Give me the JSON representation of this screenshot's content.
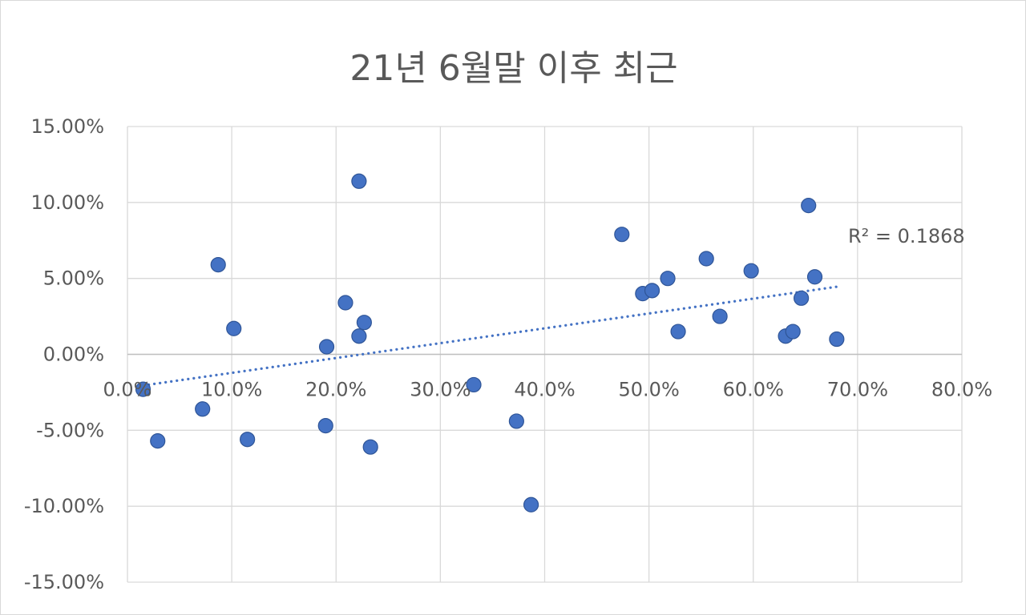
{
  "chart_data": {
    "type": "scatter",
    "title": "21년 6월말 이후 최근",
    "xlabel": "",
    "ylabel": "",
    "xlim": [
      0,
      0.8
    ],
    "ylim": [
      -0.15,
      0.15
    ],
    "x_ticks": [
      0,
      0.1,
      0.2,
      0.3,
      0.4,
      0.5,
      0.6,
      0.7,
      0.8
    ],
    "x_tick_labels": [
      "0.0%",
      "10.0%",
      "20.0%",
      "30.0%",
      "40.0%",
      "50.0%",
      "60.0%",
      "70.0%",
      "80.0%"
    ],
    "y_ticks": [
      0.15,
      0.1,
      0.05,
      0,
      -0.05,
      -0.1,
      -0.15
    ],
    "y_tick_labels": [
      "15.00%",
      "10.00%",
      "5.00%",
      "0.00%",
      "-5.00%",
      "-10.00%",
      "-15.00%"
    ],
    "grid": true,
    "legend": "none",
    "marker_color": "#4472c4",
    "marker_edge_color": "#2f5597",
    "series": [
      {
        "points": [
          {
            "x": 0.015,
            "y": -0.023
          },
          {
            "x": 0.029,
            "y": -0.057
          },
          {
            "x": 0.072,
            "y": -0.036
          },
          {
            "x": 0.087,
            "y": 0.059
          },
          {
            "x": 0.102,
            "y": 0.017
          },
          {
            "x": 0.115,
            "y": -0.056
          },
          {
            "x": 0.19,
            "y": -0.047
          },
          {
            "x": 0.191,
            "y": 0.005
          },
          {
            "x": 0.209,
            "y": 0.034
          },
          {
            "x": 0.222,
            "y": 0.012
          },
          {
            "x": 0.222,
            "y": 0.114
          },
          {
            "x": 0.227,
            "y": 0.021
          },
          {
            "x": 0.233,
            "y": -0.061
          },
          {
            "x": 0.332,
            "y": -0.02
          },
          {
            "x": 0.373,
            "y": -0.044
          },
          {
            "x": 0.387,
            "y": -0.099
          },
          {
            "x": 0.474,
            "y": 0.079
          },
          {
            "x": 0.494,
            "y": 0.04
          },
          {
            "x": 0.503,
            "y": 0.042
          },
          {
            "x": 0.518,
            "y": 0.05
          },
          {
            "x": 0.528,
            "y": 0.015
          },
          {
            "x": 0.555,
            "y": 0.063
          },
          {
            "x": 0.568,
            "y": 0.025
          },
          {
            "x": 0.598,
            "y": 0.055
          },
          {
            "x": 0.631,
            "y": 0.012
          },
          {
            "x": 0.638,
            "y": 0.015
          },
          {
            "x": 0.646,
            "y": 0.037
          },
          {
            "x": 0.653,
            "y": 0.098
          },
          {
            "x": 0.659,
            "y": 0.051
          },
          {
            "x": 0.68,
            "y": 0.01
          }
        ]
      }
    ],
    "trendline": {
      "type": "linear",
      "style": "dotted",
      "color": "#4472c4",
      "x_start": 0.015,
      "y_start": -0.0205,
      "x_end": 0.68,
      "y_end": 0.0445,
      "r_squared_label": "R² = 0.1868"
    }
  }
}
